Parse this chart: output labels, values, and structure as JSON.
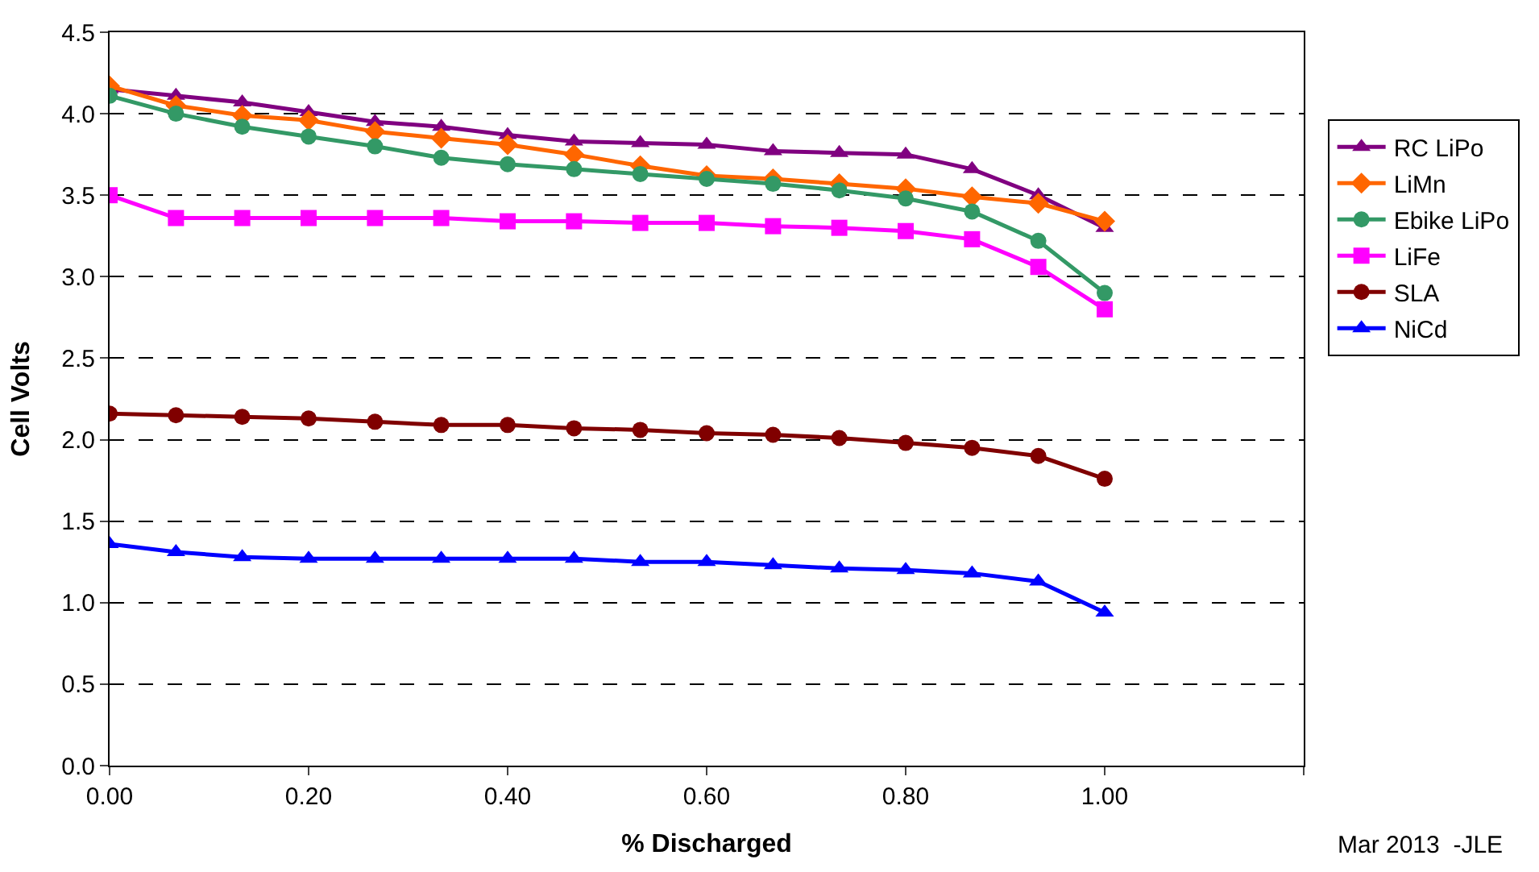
{
  "chart_data": {
    "type": "line",
    "xlabel": "% Discharged",
    "ylabel": "Cell Volts",
    "annotations": [
      "Mar 2013  -JLE"
    ],
    "x": [
      0,
      0.0667,
      0.1333,
      0.2,
      0.2667,
      0.3333,
      0.4,
      0.4667,
      0.5333,
      0.6,
      0.6667,
      0.7333,
      0.8,
      0.8667,
      0.9333,
      1.0
    ],
    "series": [
      {
        "name": "RC LiPo",
        "color": "#800080",
        "marker": "triangle",
        "values": [
          4.15,
          4.11,
          4.07,
          4.01,
          3.95,
          3.92,
          3.87,
          3.83,
          3.82,
          3.81,
          3.77,
          3.76,
          3.75,
          3.66,
          3.5,
          3.3
        ]
      },
      {
        "name": "LiMn",
        "color": "#ff6600",
        "marker": "diamond",
        "values": [
          4.17,
          4.05,
          3.99,
          3.96,
          3.89,
          3.85,
          3.81,
          3.75,
          3.68,
          3.62,
          3.6,
          3.57,
          3.54,
          3.49,
          3.45,
          3.34
        ]
      },
      {
        "name": "Ebike LiPo",
        "color": "#339966",
        "marker": "circle",
        "values": [
          4.11,
          4.0,
          3.92,
          3.86,
          3.8,
          3.73,
          3.69,
          3.66,
          3.63,
          3.6,
          3.57,
          3.53,
          3.48,
          3.4,
          3.22,
          2.9
        ]
      },
      {
        "name": "LiFe",
        "color": "#ff00ff",
        "marker": "square",
        "values": [
          3.5,
          3.36,
          3.36,
          3.36,
          3.36,
          3.36,
          3.34,
          3.34,
          3.33,
          3.33,
          3.31,
          3.3,
          3.28,
          3.23,
          3.06,
          2.8
        ]
      },
      {
        "name": "SLA",
        "color": "#800000",
        "marker": "circle",
        "values": [
          2.16,
          2.15,
          2.14,
          2.13,
          2.11,
          2.09,
          2.09,
          2.07,
          2.06,
          2.04,
          2.03,
          2.01,
          1.98,
          1.95,
          1.9,
          1.76
        ]
      },
      {
        "name": "NiCd",
        "color": "#0000ff",
        "marker": "triangle",
        "values": [
          1.36,
          1.31,
          1.28,
          1.27,
          1.27,
          1.27,
          1.27,
          1.27,
          1.25,
          1.25,
          1.23,
          1.21,
          1.2,
          1.18,
          1.13,
          0.94
        ]
      }
    ],
    "xlim": [
      0,
      1.2
    ],
    "xticks": [
      {
        "value": 0,
        "label": "0.00"
      },
      {
        "value": 0.2,
        "label": "0.20"
      },
      {
        "value": 0.4,
        "label": "0.40"
      },
      {
        "value": 0.6,
        "label": "0.60"
      },
      {
        "value": 0.8,
        "label": "0.80"
      },
      {
        "value": 1.0,
        "label": "1.00"
      },
      {
        "value": 1.2,
        "label": null
      }
    ],
    "ylim": [
      0,
      4.5
    ],
    "yticks": [
      {
        "value": 0,
        "label": "0.0"
      },
      {
        "value": 0.5,
        "label": "0.5"
      },
      {
        "value": 1.0,
        "label": "1.0"
      },
      {
        "value": 1.5,
        "label": "1.5"
      },
      {
        "value": 2.0,
        "label": "2.0"
      },
      {
        "value": 2.5,
        "label": "2.5"
      },
      {
        "value": 3.0,
        "label": "3.0"
      },
      {
        "value": 3.5,
        "label": "3.5"
      },
      {
        "value": 4.0,
        "label": "4.0"
      },
      {
        "value": 4.5,
        "label": "4.5"
      }
    ],
    "grid": "y",
    "legend": "right",
    "line_style": "solid"
  }
}
